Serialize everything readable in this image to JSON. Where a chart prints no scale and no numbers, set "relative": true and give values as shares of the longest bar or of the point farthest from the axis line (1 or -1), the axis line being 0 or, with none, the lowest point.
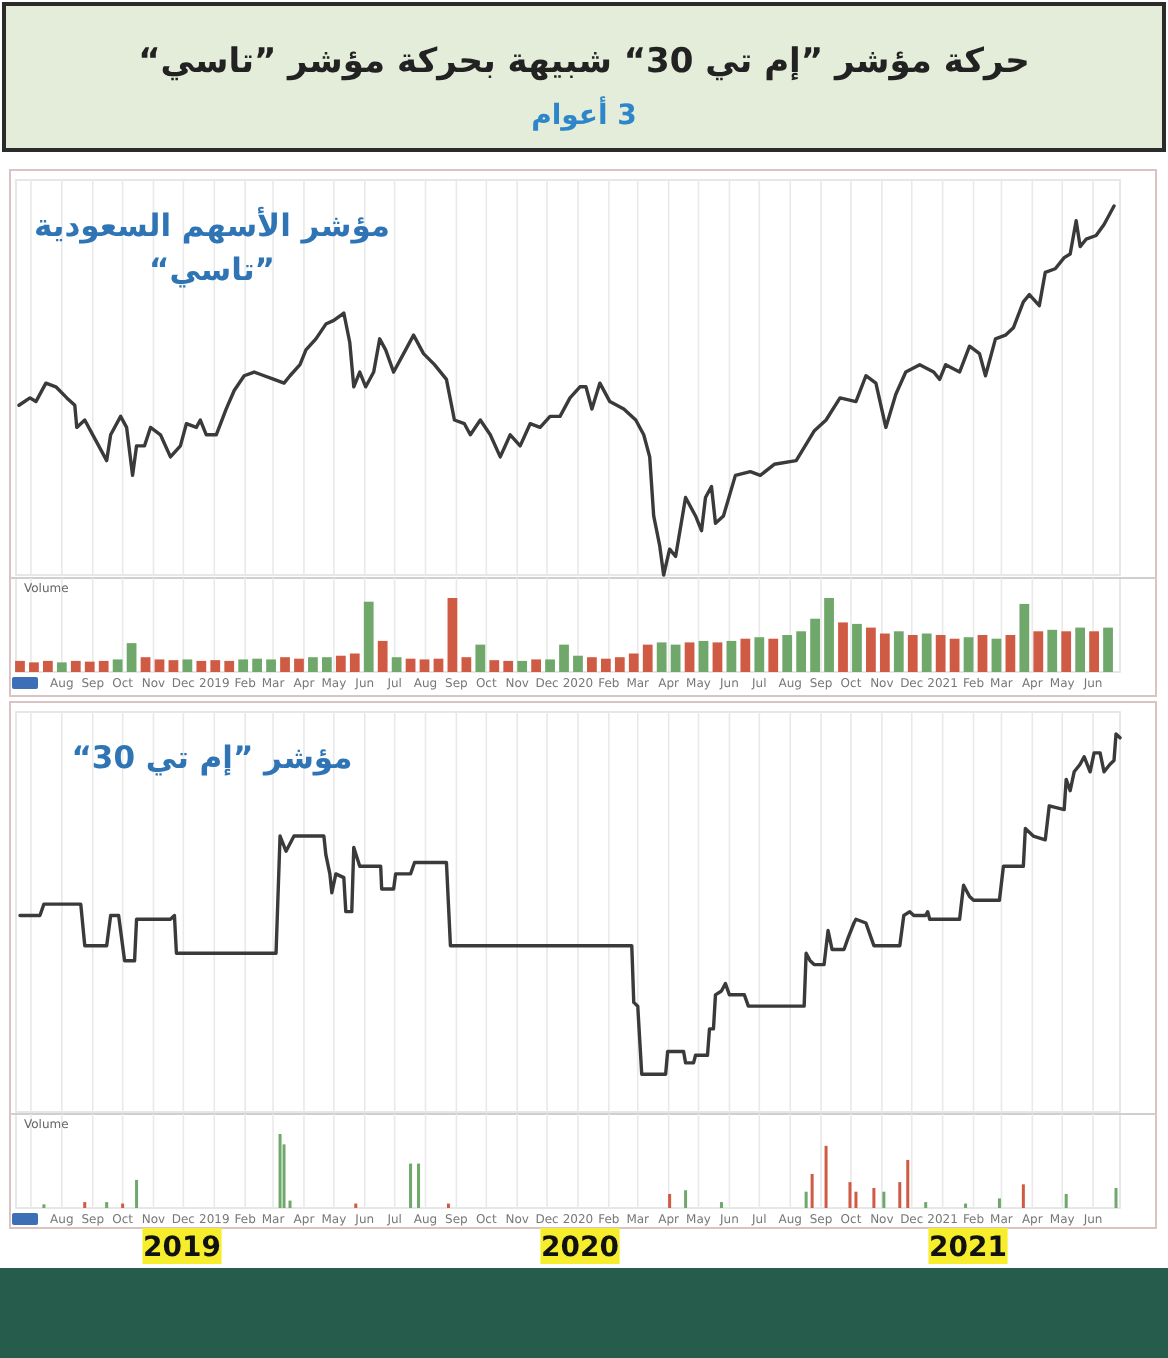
{
  "chart_data": [
    {
      "type": "other",
      "title": "حركة مؤشر ”إم تي 30“ شبيهة بحركة مؤشر ”تاسي“",
      "subtitle": "3 أعوام"
    },
    {
      "type": "line",
      "title": "مؤشر الأسهم السعودية ”تاسي“",
      "relative": true,
      "color": "#3a3a3a",
      "grid": "x",
      "tick_labels": false,
      "xlim": [
        "2018-06-16",
        "2021-06-28"
      ],
      "xticks": [
        "2018-07-01",
        "2018-08-01",
        "2018-09-01",
        "2018-10-01",
        "2018-11-01",
        "2018-12-01",
        "2019-01-01",
        "2019-02-01",
        "2019-03-01",
        "2019-04-01",
        "2019-05-01",
        "2019-06-01",
        "2019-07-01",
        "2019-08-01",
        "2019-09-01",
        "2019-10-01",
        "2019-11-01",
        "2019-12-01",
        "2020-01-01",
        "2020-02-01",
        "2020-03-01",
        "2020-04-01",
        "2020-05-01",
        "2020-06-01",
        "2020-07-01",
        "2020-08-01",
        "2020-09-01",
        "2020-10-01",
        "2020-11-01",
        "2020-12-01",
        "2021-01-01",
        "2021-02-01",
        "2021-03-01",
        "2021-04-01",
        "2021-05-01",
        "2021-06-01"
      ],
      "x": [
        "2018-06-19",
        "2018-06-30",
        "2018-07-06",
        "2018-07-16",
        "2018-07-26",
        "2018-08-06",
        "2018-08-14",
        "2018-08-16",
        "2018-08-24",
        "2018-08-30",
        "2018-09-05",
        "2018-09-15",
        "2018-09-19",
        "2018-09-29",
        "2018-10-05",
        "2018-10-11",
        "2018-10-15",
        "2018-10-23",
        "2018-10-29",
        "2018-11-08",
        "2018-11-18",
        "2018-11-28",
        "2018-12-04",
        "2018-12-14",
        "2018-12-18",
        "2018-12-24",
        "2019-01-03",
        "2019-01-13",
        "2019-01-21",
        "2019-01-31",
        "2019-02-10",
        "2019-02-20",
        "2019-03-02",
        "2019-03-12",
        "2019-03-18",
        "2019-03-28",
        "2019-04-03",
        "2019-04-13",
        "2019-04-23",
        "2019-05-01",
        "2019-05-11",
        "2019-05-17",
        "2019-05-21",
        "2019-05-27",
        "2019-06-02",
        "2019-06-10",
        "2019-06-16",
        "2019-06-22",
        "2019-06-30",
        "2019-07-10",
        "2019-07-20",
        "2019-07-30",
        "2019-08-10",
        "2019-08-22",
        "2019-08-30",
        "2019-09-09",
        "2019-09-15",
        "2019-09-25",
        "2019-10-05",
        "2019-10-15",
        "2019-10-25",
        "2019-11-04",
        "2019-11-14",
        "2019-11-24",
        "2019-12-04",
        "2019-12-14",
        "2019-12-24",
        "2020-01-03",
        "2020-01-09",
        "2020-01-15",
        "2020-01-23",
        "2020-02-02",
        "2020-02-16",
        "2020-02-28",
        "2020-03-07",
        "2020-03-13",
        "2020-03-17",
        "2020-03-23",
        "2020-03-27",
        "2020-04-02",
        "2020-04-08",
        "2020-04-18",
        "2020-04-28",
        "2020-05-04",
        "2020-05-08",
        "2020-05-14",
        "2020-05-18",
        "2020-05-26",
        "2020-06-07",
        "2020-06-22",
        "2020-07-02",
        "2020-07-16",
        "2020-08-07",
        "2020-08-25",
        "2020-09-06",
        "2020-09-20",
        "2020-10-06",
        "2020-10-16",
        "2020-10-26",
        "2020-11-05",
        "2020-11-15",
        "2020-11-25",
        "2020-12-09",
        "2020-12-23",
        "2020-12-29",
        "2021-01-04",
        "2021-01-18",
        "2021-01-28",
        "2021-02-07",
        "2021-02-13",
        "2021-02-23",
        "2021-03-05",
        "2021-03-13",
        "2021-03-23",
        "2021-03-29",
        "2021-04-08",
        "2021-04-14",
        "2021-04-24",
        "2021-05-03",
        "2021-05-09",
        "2021-05-15",
        "2021-05-19",
        "2021-05-25",
        "2021-06-04",
        "2021-06-12",
        "2021-06-22"
      ],
      "values": [
        0.46,
        0.48,
        0.47,
        0.52,
        0.51,
        0.48,
        0.46,
        0.4,
        0.42,
        0.39,
        0.36,
        0.31,
        0.38,
        0.43,
        0.4,
        0.27,
        0.35,
        0.35,
        0.4,
        0.38,
        0.32,
        0.35,
        0.41,
        0.4,
        0.42,
        0.38,
        0.38,
        0.45,
        0.5,
        0.54,
        0.55,
        0.54,
        0.53,
        0.52,
        0.54,
        0.57,
        0.61,
        0.64,
        0.68,
        0.69,
        0.71,
        0.63,
        0.51,
        0.55,
        0.51,
        0.55,
        0.64,
        0.61,
        0.55,
        0.6,
        0.65,
        0.6,
        0.57,
        0.53,
        0.42,
        0.41,
        0.38,
        0.42,
        0.38,
        0.32,
        0.38,
        0.35,
        0.41,
        0.4,
        0.43,
        0.43,
        0.48,
        0.51,
        0.51,
        0.45,
        0.52,
        0.47,
        0.45,
        0.42,
        0.38,
        0.32,
        0.16,
        0.08,
        0.0,
        0.07,
        0.05,
        0.21,
        0.16,
        0.12,
        0.21,
        0.24,
        0.14,
        0.16,
        0.27,
        0.28,
        0.27,
        0.3,
        0.31,
        0.39,
        0.42,
        0.48,
        0.47,
        0.54,
        0.52,
        0.4,
        0.49,
        0.55,
        0.57,
        0.55,
        0.53,
        0.57,
        0.55,
        0.62,
        0.6,
        0.54,
        0.64,
        0.65,
        0.67,
        0.74,
        0.76,
        0.73,
        0.82,
        0.83,
        0.86,
        0.87,
        0.96,
        0.89,
        0.91,
        0.92,
        0.95,
        1.0
      ]
    },
    {
      "type": "bar",
      "title": "Volume",
      "relative": true,
      "grid": "x",
      "tick_labels": "x",
      "xlim": [
        "2018-06-16",
        "2021-06-28"
      ],
      "xticks": [
        {
          "value": "2018-07-01",
          "label": null
        },
        {
          "value": "2018-08-01",
          "label": "Aug"
        },
        {
          "value": "2018-09-01",
          "label": "Sep"
        },
        {
          "value": "2018-10-01",
          "label": "Oct"
        },
        {
          "value": "2018-11-01",
          "label": "Nov"
        },
        {
          "value": "2018-12-01",
          "label": "Dec"
        },
        {
          "value": "2019-01-01",
          "label": "2019"
        },
        {
          "value": "2019-02-01",
          "label": "Feb"
        },
        {
          "value": "2019-03-01",
          "label": "Mar"
        },
        {
          "value": "2019-04-01",
          "label": "Apr"
        },
        {
          "value": "2019-05-01",
          "label": "May"
        },
        {
          "value": "2019-06-01",
          "label": "Jun"
        },
        {
          "value": "2019-07-01",
          "label": "Jul"
        },
        {
          "value": "2019-08-01",
          "label": "Aug"
        },
        {
          "value": "2019-09-01",
          "label": "Sep"
        },
        {
          "value": "2019-10-01",
          "label": "Oct"
        },
        {
          "value": "2019-11-01",
          "label": "Nov"
        },
        {
          "value": "2019-12-01",
          "label": "Dec"
        },
        {
          "value": "2020-01-01",
          "label": "2020"
        },
        {
          "value": "2020-02-01",
          "label": "Feb"
        },
        {
          "value": "2020-03-01",
          "label": "Mar"
        },
        {
          "value": "2020-04-01",
          "label": "Apr"
        },
        {
          "value": "2020-05-01",
          "label": "May"
        },
        {
          "value": "2020-06-01",
          "label": "Jun"
        },
        {
          "value": "2020-07-01",
          "label": "Jul"
        },
        {
          "value": "2020-08-01",
          "label": "Aug"
        },
        {
          "value": "2020-09-01",
          "label": "Sep"
        },
        {
          "value": "2020-10-01",
          "label": "Oct"
        },
        {
          "value": "2020-11-01",
          "label": "Nov"
        },
        {
          "value": "2020-12-01",
          "label": "Dec"
        },
        {
          "value": "2021-01-01",
          "label": "2021"
        },
        {
          "value": "2021-02-01",
          "label": "Feb"
        },
        {
          "value": "2021-03-01",
          "label": "Mar"
        },
        {
          "value": "2021-04-01",
          "label": "Apr"
        },
        {
          "value": "2021-05-01",
          "label": "May"
        },
        {
          "value": "2021-06-01",
          "label": "Jun"
        }
      ],
      "x": [
        "2018-06-20",
        "2018-07-04",
        "2018-07-18",
        "2018-08-01",
        "2018-08-15",
        "2018-08-29",
        "2018-09-12",
        "2018-09-26",
        "2018-10-10",
        "2018-10-24",
        "2018-11-07",
        "2018-11-21",
        "2018-12-05",
        "2018-12-19",
        "2019-01-02",
        "2019-01-16",
        "2019-01-30",
        "2019-02-13",
        "2019-02-27",
        "2019-03-13",
        "2019-03-27",
        "2019-04-10",
        "2019-04-24",
        "2019-05-08",
        "2019-05-22",
        "2019-06-05",
        "2019-06-19",
        "2019-07-03",
        "2019-07-17",
        "2019-07-31",
        "2019-08-14",
        "2019-08-28",
        "2019-09-11",
        "2019-09-25",
        "2019-10-09",
        "2019-10-23",
        "2019-11-06",
        "2019-11-20",
        "2019-12-04",
        "2019-12-18",
        "2020-01-01",
        "2020-01-15",
        "2020-01-29",
        "2020-02-12",
        "2020-02-26",
        "2020-03-11",
        "2020-03-25",
        "2020-04-08",
        "2020-04-22",
        "2020-05-06",
        "2020-05-20",
        "2020-06-03",
        "2020-06-17",
        "2020-07-01",
        "2020-07-15",
        "2020-07-29",
        "2020-08-12",
        "2020-08-26",
        "2020-09-09",
        "2020-09-23",
        "2020-10-07",
        "2020-10-21",
        "2020-11-04",
        "2020-11-18",
        "2020-12-02",
        "2020-12-16",
        "2020-12-30",
        "2021-01-13",
        "2021-01-27",
        "2021-02-10",
        "2021-02-24",
        "2021-03-10",
        "2021-03-24",
        "2021-04-07",
        "2021-04-21",
        "2021-05-05",
        "2021-05-19",
        "2021-06-02",
        "2021-06-16"
      ],
      "values": [
        0.15,
        0.13,
        0.15,
        0.13,
        0.15,
        0.14,
        0.15,
        0.17,
        0.39,
        0.2,
        0.17,
        0.16,
        0.17,
        0.15,
        0.16,
        0.15,
        0.17,
        0.18,
        0.17,
        0.2,
        0.18,
        0.2,
        0.2,
        0.22,
        0.25,
        0.95,
        0.42,
        0.2,
        0.18,
        0.17,
        0.18,
        1.0,
        0.2,
        0.37,
        0.16,
        0.15,
        0.15,
        0.17,
        0.17,
        0.37,
        0.22,
        0.2,
        0.18,
        0.2,
        0.25,
        0.37,
        0.4,
        0.37,
        0.4,
        0.42,
        0.4,
        0.42,
        0.45,
        0.47,
        0.45,
        0.5,
        0.55,
        0.72,
        1.0,
        0.67,
        0.65,
        0.6,
        0.52,
        0.55,
        0.5,
        0.52,
        0.5,
        0.45,
        0.47,
        0.5,
        0.45,
        0.5,
        0.92,
        0.55,
        0.57,
        0.55,
        0.6,
        0.55,
        0.6
      ],
      "colors": [
        "#cf5b45",
        "#cf5b45",
        "#cf5b45",
        "#6fa86a",
        "#cf5b45",
        "#cf5b45",
        "#cf5b45",
        "#6fa86a",
        "#6fa86a",
        "#cf5b45",
        "#cf5b45",
        "#cf5b45",
        "#6fa86a",
        "#cf5b45",
        "#cf5b45",
        "#cf5b45",
        "#6fa86a",
        "#6fa86a",
        "#6fa86a",
        "#cf5b45",
        "#cf5b45",
        "#6fa86a",
        "#6fa86a",
        "#cf5b45",
        "#cf5b45",
        "#6fa86a",
        "#cf5b45",
        "#6fa86a",
        "#cf5b45",
        "#cf5b45",
        "#cf5b45",
        "#cf5b45",
        "#cf5b45",
        "#6fa86a",
        "#cf5b45",
        "#cf5b45",
        "#6fa86a",
        "#cf5b45",
        "#6fa86a",
        "#6fa86a",
        "#6fa86a",
        "#cf5b45",
        "#cf5b45",
        "#cf5b45",
        "#cf5b45",
        "#cf5b45",
        "#6fa86a",
        "#6fa86a",
        "#cf5b45",
        "#6fa86a",
        "#cf5b45",
        "#6fa86a",
        "#cf5b45",
        "#6fa86a",
        "#cf5b45",
        "#6fa86a",
        "#6fa86a",
        "#6fa86a",
        "#6fa86a",
        "#cf5b45",
        "#6fa86a",
        "#cf5b45",
        "#cf5b45",
        "#6fa86a",
        "#cf5b45",
        "#6fa86a",
        "#cf5b45",
        "#cf5b45",
        "#6fa86a",
        "#cf5b45",
        "#6fa86a",
        "#cf5b45",
        "#6fa86a",
        "#cf5b45",
        "#6fa86a",
        "#cf5b45",
        "#6fa86a",
        "#cf5b45",
        "#6fa86a"
      ]
    },
    {
      "type": "line",
      "title": "مؤشر ”إم تي 30“",
      "relative": true,
      "color": "#3a3a3a",
      "grid": "x",
      "tick_labels": false,
      "xlim": [
        "2018-06-16",
        "2021-06-28"
      ],
      "xticks": [
        "2018-07-01",
        "2018-08-01",
        "2018-09-01",
        "2018-10-01",
        "2018-11-01",
        "2018-12-01",
        "2019-01-01",
        "2019-02-01",
        "2019-03-01",
        "2019-04-01",
        "2019-05-01",
        "2019-06-01",
        "2019-07-01",
        "2019-08-01",
        "2019-09-01",
        "2019-10-01",
        "2019-11-01",
        "2019-12-01",
        "2020-01-01",
        "2020-02-01",
        "2020-03-01",
        "2020-04-01",
        "2020-05-01",
        "2020-06-01",
        "2020-07-01",
        "2020-08-01",
        "2020-09-01",
        "2020-10-01",
        "2020-11-01",
        "2020-12-01",
        "2021-01-01",
        "2021-02-01",
        "2021-03-01",
        "2021-04-01",
        "2021-05-01",
        "2021-06-01"
      ],
      "x": [
        "2018-06-20",
        "2018-07-10",
        "2018-07-14",
        "2018-08-20",
        "2018-08-24",
        "2018-09-15",
        "2018-09-19",
        "2018-09-27",
        "2018-10-03",
        "2018-10-13",
        "2018-10-15",
        "2018-11-18",
        "2018-11-22",
        "2018-11-24",
        "2019-03-04",
        "2019-03-08",
        "2019-03-14",
        "2019-03-22",
        "2019-04-21",
        "2019-04-23",
        "2019-04-27",
        "2019-04-29",
        "2019-05-03",
        "2019-05-11",
        "2019-05-13",
        "2019-05-19",
        "2019-05-21",
        "2019-05-27",
        "2019-06-17",
        "2019-06-18",
        "2019-06-30",
        "2019-07-02",
        "2019-07-17",
        "2019-07-21",
        "2019-08-22",
        "2019-08-26",
        "2020-02-24",
        "2020-02-26",
        "2020-03-01",
        "2020-03-05",
        "2020-03-29",
        "2020-03-31",
        "2020-04-16",
        "2020-04-18",
        "2020-04-26",
        "2020-04-28",
        "2020-05-10",
        "2020-05-12",
        "2020-05-16",
        "2020-05-18",
        "2020-05-24",
        "2020-05-28",
        "2020-06-01",
        "2020-06-16",
        "2020-06-20",
        "2020-08-15",
        "2020-08-17",
        "2020-08-21",
        "2020-08-25",
        "2020-09-04",
        "2020-09-08",
        "2020-09-12",
        "2020-09-24",
        "2020-09-28",
        "2020-10-04",
        "2020-10-06",
        "2020-10-16",
        "2020-10-20",
        "2020-10-24",
        "2020-11-19",
        "2020-11-23",
        "2020-11-29",
        "2020-12-03",
        "2020-12-15",
        "2020-12-17",
        "2020-12-19",
        "2021-01-18",
        "2021-01-22",
        "2021-01-28",
        "2021-02-01",
        "2021-02-27",
        "2021-03-03",
        "2021-03-23",
        "2021-03-25",
        "2021-04-02",
        "2021-04-14",
        "2021-04-18",
        "2021-05-03",
        "2021-05-05",
        "2021-05-09",
        "2021-05-13",
        "2021-05-19",
        "2021-05-23",
        "2021-05-29",
        "2021-06-02",
        "2021-06-08",
        "2021-06-12",
        "2021-06-18",
        "2021-06-22",
        "2021-06-24",
        "2021-06-28"
      ],
      "values": [
        0.52,
        0.52,
        0.55,
        0.55,
        0.44,
        0.44,
        0.52,
        0.52,
        0.4,
        0.4,
        0.51,
        0.51,
        0.52,
        0.42,
        0.42,
        0.73,
        0.69,
        0.73,
        0.73,
        0.68,
        0.63,
        0.58,
        0.63,
        0.62,
        0.53,
        0.53,
        0.7,
        0.65,
        0.65,
        0.59,
        0.59,
        0.63,
        0.63,
        0.66,
        0.66,
        0.44,
        0.44,
        0.29,
        0.28,
        0.1,
        0.1,
        0.16,
        0.16,
        0.13,
        0.13,
        0.15,
        0.15,
        0.22,
        0.22,
        0.31,
        0.32,
        0.34,
        0.31,
        0.31,
        0.28,
        0.28,
        0.42,
        0.4,
        0.39,
        0.39,
        0.48,
        0.43,
        0.43,
        0.46,
        0.5,
        0.51,
        0.5,
        0.47,
        0.44,
        0.44,
        0.52,
        0.53,
        0.52,
        0.52,
        0.53,
        0.51,
        0.51,
        0.6,
        0.57,
        0.56,
        0.56,
        0.65,
        0.65,
        0.75,
        0.73,
        0.72,
        0.81,
        0.8,
        0.88,
        0.85,
        0.9,
        0.92,
        0.94,
        0.9,
        0.95,
        0.95,
        0.9,
        0.92,
        0.93,
        1.0,
        0.99
      ]
    },
    {
      "type": "bar",
      "title": "Volume",
      "relative": true,
      "grid": "x",
      "tick_labels": "x",
      "xlim": [
        "2018-06-16",
        "2021-06-28"
      ],
      "xticks": [
        {
          "value": "2018-07-01",
          "label": null
        },
        {
          "value": "2018-08-01",
          "label": "Aug"
        },
        {
          "value": "2018-09-01",
          "label": "Sep"
        },
        {
          "value": "2018-10-01",
          "label": "Oct"
        },
        {
          "value": "2018-11-01",
          "label": "Nov"
        },
        {
          "value": "2018-12-01",
          "label": "Dec"
        },
        {
          "value": "2019-01-01",
          "label": "2019"
        },
        {
          "value": "2019-02-01",
          "label": "Feb"
        },
        {
          "value": "2019-03-01",
          "label": "Mar"
        },
        {
          "value": "2019-04-01",
          "label": "Apr"
        },
        {
          "value": "2019-05-01",
          "label": "May"
        },
        {
          "value": "2019-06-01",
          "label": "Jun"
        },
        {
          "value": "2019-07-01",
          "label": "Jul"
        },
        {
          "value": "2019-08-01",
          "label": "Aug"
        },
        {
          "value": "2019-09-01",
          "label": "Sep"
        },
        {
          "value": "2019-10-01",
          "label": "Oct"
        },
        {
          "value": "2019-11-01",
          "label": "Nov"
        },
        {
          "value": "2019-12-01",
          "label": "Dec"
        },
        {
          "value": "2020-01-01",
          "label": "2020"
        },
        {
          "value": "2020-02-01",
          "label": "Feb"
        },
        {
          "value": "2020-03-01",
          "label": "Mar"
        },
        {
          "value": "2020-04-01",
          "label": "Apr"
        },
        {
          "value": "2020-05-01",
          "label": "May"
        },
        {
          "value": "2020-06-01",
          "label": "Jun"
        },
        {
          "value": "2020-07-01",
          "label": "Jul"
        },
        {
          "value": "2020-08-01",
          "label": "Aug"
        },
        {
          "value": "2020-09-01",
          "label": "Sep"
        },
        {
          "value": "2020-10-01",
          "label": "Oct"
        },
        {
          "value": "2020-11-01",
          "label": "Nov"
        },
        {
          "value": "2020-12-01",
          "label": "Dec"
        },
        {
          "value": "2021-01-01",
          "label": "2021"
        },
        {
          "value": "2021-02-01",
          "label": "Feb"
        },
        {
          "value": "2021-03-01",
          "label": "Mar"
        },
        {
          "value": "2021-04-01",
          "label": "Apr"
        },
        {
          "value": "2021-05-01",
          "label": "May"
        },
        {
          "value": "2021-06-01",
          "label": "Jun"
        }
      ],
      "x": [
        "2018-07-14",
        "2018-08-24",
        "2018-09-15",
        "2018-10-01",
        "2018-10-15",
        "2019-03-08",
        "2019-03-12",
        "2019-03-18",
        "2019-05-23",
        "2019-07-17",
        "2019-07-25",
        "2019-08-24",
        "2020-04-02",
        "2020-04-18",
        "2020-05-24",
        "2020-08-17",
        "2020-08-23",
        "2020-09-06",
        "2020-09-30",
        "2020-10-06",
        "2020-10-24",
        "2020-11-03",
        "2020-11-19",
        "2020-11-27",
        "2020-12-15",
        "2021-01-24",
        "2021-02-27",
        "2021-03-23",
        "2021-05-05",
        "2021-06-24"
      ],
      "values": [
        0.05,
        0.08,
        0.08,
        0.06,
        0.38,
        1.0,
        0.86,
        0.1,
        0.06,
        0.6,
        0.6,
        0.06,
        0.19,
        0.24,
        0.08,
        0.22,
        0.46,
        0.84,
        0.35,
        0.22,
        0.27,
        0.22,
        0.35,
        0.65,
        0.08,
        0.06,
        0.13,
        0.32,
        0.19,
        0.27
      ],
      "colors": [
        "#6fa86a",
        "#cf5b45",
        "#6fa86a",
        "#cf5b45",
        "#6fa86a",
        "#6fa86a",
        "#6fa86a",
        "#6fa86a",
        "#cf5b45",
        "#6fa86a",
        "#6fa86a",
        "#cf5b45",
        "#cf5b45",
        "#6fa86a",
        "#6fa86a",
        "#6fa86a",
        "#cf5b45",
        "#cf5b45",
        "#cf5b45",
        "#cf5b45",
        "#cf5b45",
        "#6fa86a",
        "#cf5b45",
        "#cf5b45",
        "#6fa86a",
        "#6fa86a",
        "#6fa86a",
        "#cf5b45",
        "#6fa86a",
        "#6fa86a"
      ],
      "annotations": [
        "2019",
        "2020",
        "2021"
      ]
    }
  ]
}
